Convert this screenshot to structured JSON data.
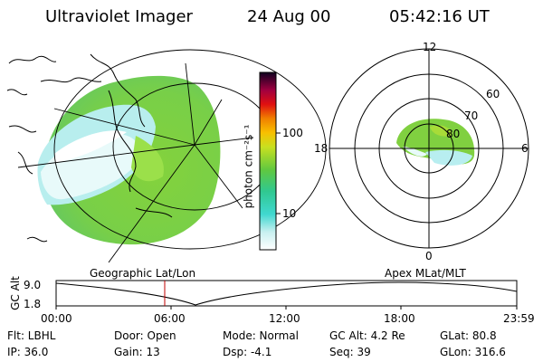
{
  "header": {
    "instrument": "Ultraviolet Imager",
    "date": "24 Aug 00",
    "time": "05:42:16 UT"
  },
  "colorbar": {
    "unit_label": "photon cm⁻²s⁻¹",
    "ticks": [
      "100",
      "10"
    ]
  },
  "polar_plot": {
    "mlt_labels": [
      "12",
      "18",
      "6",
      "0"
    ],
    "lat_labels": [
      "60",
      "70",
      "80"
    ]
  },
  "panel_labels": {
    "geographic": "Geographic Lat/Lon",
    "apex": "Apex MLat/MLT"
  },
  "altitude_chart": {
    "ylabel": "GC Alt",
    "yticks": [
      "9.0",
      "1.8"
    ],
    "xticks": [
      "00:00",
      "06:00",
      "12:00",
      "18:00",
      "23:59"
    ]
  },
  "info": {
    "row1": [
      "Flt: LBHL",
      "Door: Open",
      "Mode: Normal",
      "GC Alt: 4.2 Re",
      "GLat:  80.8"
    ],
    "row2": [
      "IP: 36.0",
      "Gain: 13",
      "Dsp:    -4.1",
      "Seq: 39",
      "GLon: 316.6"
    ]
  },
  "colors": {
    "aurora_green": "#7cd040",
    "aurora_cyan": "#40e0d8",
    "marker_red": "#c00000"
  }
}
